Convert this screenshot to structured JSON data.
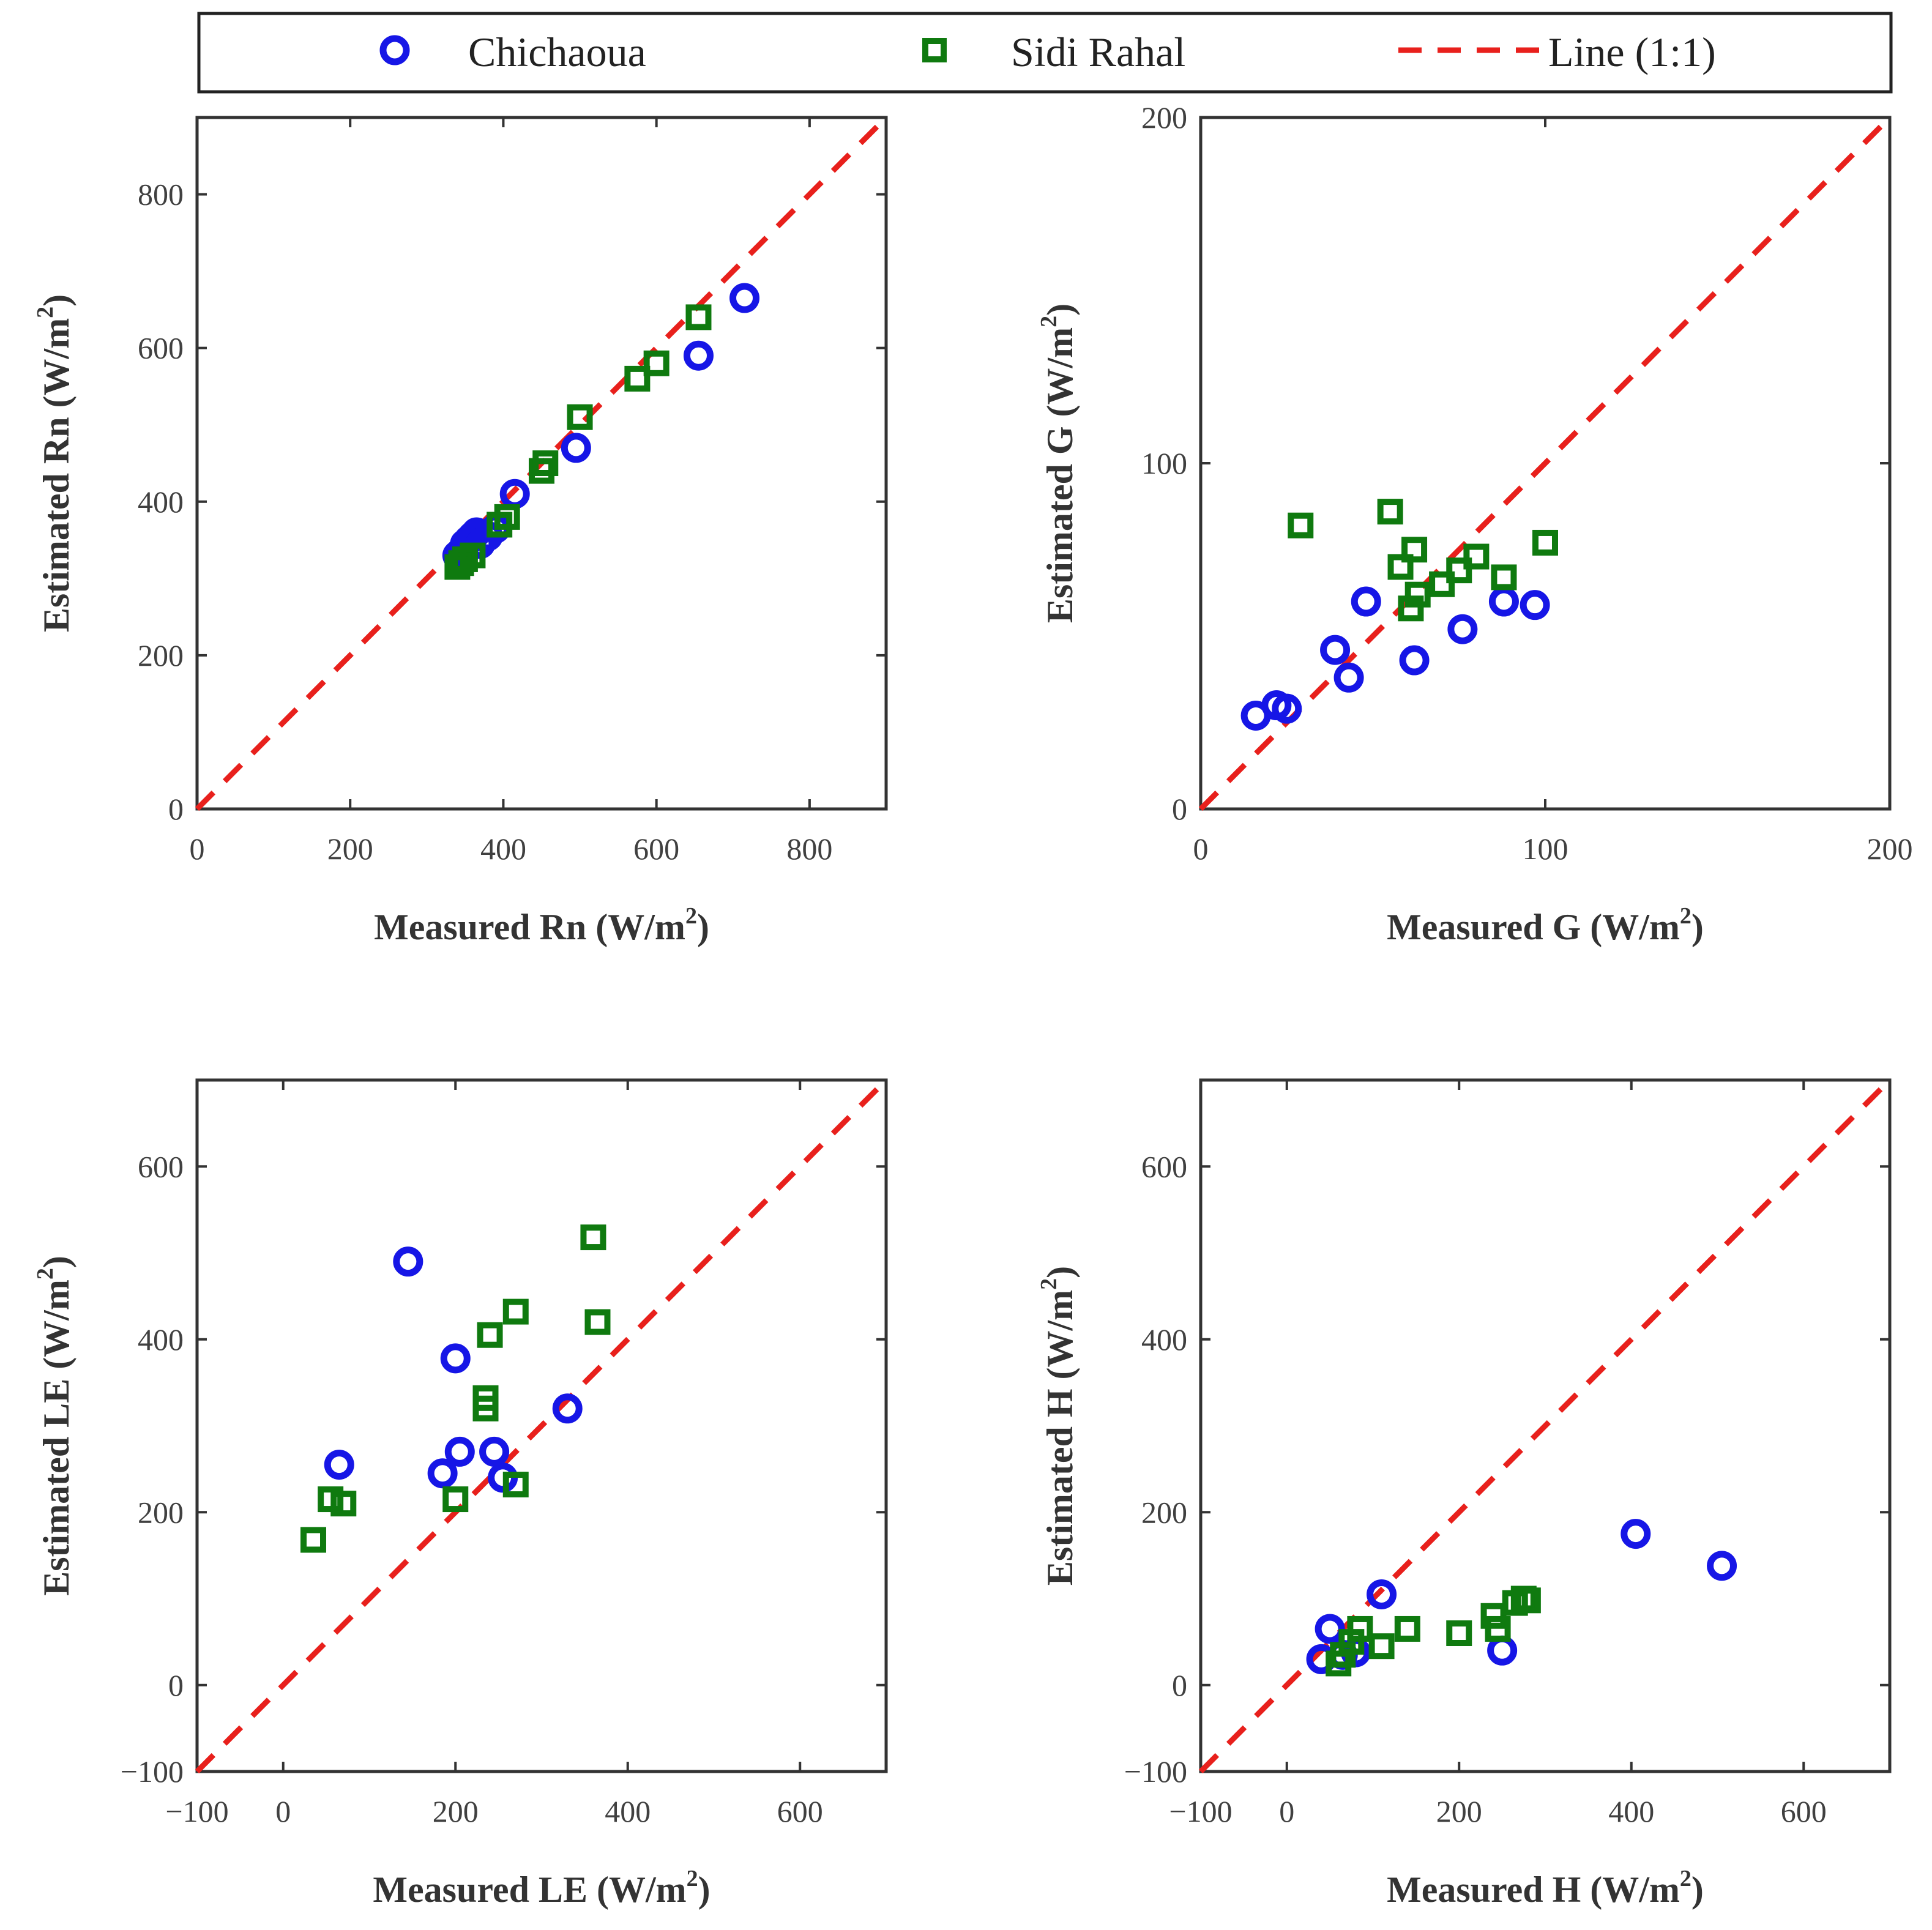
{
  "legend": {
    "chichaoua": "Chichaoua",
    "sidi_rahal": "Sidi Rahal",
    "line": "Line (1:1)"
  },
  "colors": {
    "chichaoua": "#1616e6",
    "sidi_rahal": "#0f7a0f",
    "line": "#e8201c"
  },
  "chart_data": [
    {
      "id": "rn",
      "type": "scatter",
      "title": "",
      "xlabel_main": "Measured Rn (W/m",
      "xlabel_sup": "2",
      "xlabel_end": ")",
      "ylabel_main": "Estimated Rn  (W/m",
      "ylabel_sup": "2",
      "ylabel_end": ")",
      "xlim": [
        0,
        900
      ],
      "ylim": [
        0,
        900
      ],
      "xticks": [
        0,
        200,
        400,
        600,
        800
      ],
      "yticks": [
        0,
        200,
        400,
        600,
        800
      ],
      "series": [
        {
          "name": "Chichaoua",
          "points": [
            [
              340,
              330
            ],
            [
              345,
              335
            ],
            [
              350,
              345
            ],
            [
              355,
              350
            ],
            [
              360,
              355
            ],
            [
              365,
              360
            ],
            [
              370,
              345
            ],
            [
              380,
              355
            ],
            [
              390,
              365
            ],
            [
              415,
              410
            ],
            [
              495,
              470
            ],
            [
              655,
              590
            ],
            [
              715,
              665
            ]
          ]
        },
        {
          "name": "Sidi Rahal",
          "points": [
            [
              340,
              315
            ],
            [
              345,
              320
            ],
            [
              350,
              325
            ],
            [
              360,
              330
            ],
            [
              395,
              370
            ],
            [
              405,
              380
            ],
            [
              450,
              440
            ],
            [
              455,
              450
            ],
            [
              500,
              510
            ],
            [
              575,
              560
            ],
            [
              600,
              580
            ],
            [
              655,
              640
            ]
          ]
        }
      ]
    },
    {
      "id": "g",
      "type": "scatter",
      "title": "",
      "xlabel_main": "Measured G (W/m",
      "xlabel_sup": "2",
      "xlabel_end": ")",
      "ylabel_main": "Estimated G  (W/m",
      "ylabel_sup": "2",
      "ylabel_end": ")",
      "xlim": [
        0,
        200
      ],
      "ylim": [
        0,
        200
      ],
      "xticks": [
        0,
        100,
        200
      ],
      "yticks": [
        0,
        100,
        200
      ],
      "series": [
        {
          "name": "Chichaoua",
          "points": [
            [
              16,
              27
            ],
            [
              22,
              30
            ],
            [
              25,
              29
            ],
            [
              39,
              46
            ],
            [
              43,
              38
            ],
            [
              48,
              60
            ],
            [
              62,
              43
            ],
            [
              76,
              52
            ],
            [
              88,
              60
            ],
            [
              97,
              59
            ]
          ]
        },
        {
          "name": "Sidi Rahal",
          "points": [
            [
              29,
              82
            ],
            [
              55,
              86
            ],
            [
              58,
              70
            ],
            [
              61,
              58
            ],
            [
              62,
              75
            ],
            [
              63,
              62
            ],
            [
              70,
              65
            ],
            [
              75,
              69
            ],
            [
              80,
              73
            ],
            [
              88,
              67
            ],
            [
              100,
              77
            ]
          ]
        }
      ]
    },
    {
      "id": "le",
      "type": "scatter",
      "title": "",
      "xlabel_main": "Measured LE (W/m",
      "xlabel_sup": "2",
      "xlabel_end": ")",
      "ylabel_main": "Estimated LE  (W/m",
      "ylabel_sup": "2",
      "ylabel_end": ")",
      "xlim": [
        -100,
        700
      ],
      "ylim": [
        -100,
        700
      ],
      "xticks": [
        -100,
        0,
        200,
        400,
        600
      ],
      "yticks": [
        -100,
        0,
        200,
        400,
        600
      ],
      "series": [
        {
          "name": "Chichaoua",
          "points": [
            [
              65,
              255
            ],
            [
              145,
              490
            ],
            [
              185,
              245
            ],
            [
              200,
              378
            ],
            [
              205,
              270
            ],
            [
              245,
              270
            ],
            [
              255,
              240
            ],
            [
              330,
              320
            ]
          ]
        },
        {
          "name": "Sidi Rahal",
          "points": [
            [
              35,
              168
            ],
            [
              55,
              215
            ],
            [
              70,
              210
            ],
            [
              200,
              215
            ],
            [
              235,
              320
            ],
            [
              235,
              332
            ],
            [
              240,
              405
            ],
            [
              270,
              232
            ],
            [
              270,
              432
            ],
            [
              360,
              518
            ],
            [
              365,
              420
            ]
          ]
        }
      ]
    },
    {
      "id": "h",
      "type": "scatter",
      "title": "",
      "xlabel_main": "Measured H (W/m",
      "xlabel_sup": "2",
      "xlabel_end": ")",
      "ylabel_main": "Estimated H  (W/m",
      "ylabel_sup": "2",
      "ylabel_end": ")",
      "xlim": [
        -100,
        700
      ],
      "ylim": [
        -100,
        700
      ],
      "xticks": [
        -100,
        0,
        200,
        400,
        600
      ],
      "yticks": [
        -100,
        0,
        200,
        400,
        600
      ],
      "series": [
        {
          "name": "Chichaoua",
          "points": [
            [
              40,
              30
            ],
            [
              50,
              65
            ],
            [
              65,
              35
            ],
            [
              80,
              38
            ],
            [
              110,
              105
            ],
            [
              250,
              40
            ],
            [
              405,
              175
            ],
            [
              505,
              138
            ]
          ]
        },
        {
          "name": "Sidi Rahal",
          "points": [
            [
              60,
              25
            ],
            [
              65,
              35
            ],
            [
              75,
              50
            ],
            [
              85,
              65
            ],
            [
              110,
              45
            ],
            [
              140,
              65
            ],
            [
              200,
              60
            ],
            [
              240,
              80
            ],
            [
              245,
              65
            ],
            [
              265,
              95
            ],
            [
              275,
              100
            ],
            [
              280,
              98
            ]
          ]
        }
      ]
    }
  ]
}
